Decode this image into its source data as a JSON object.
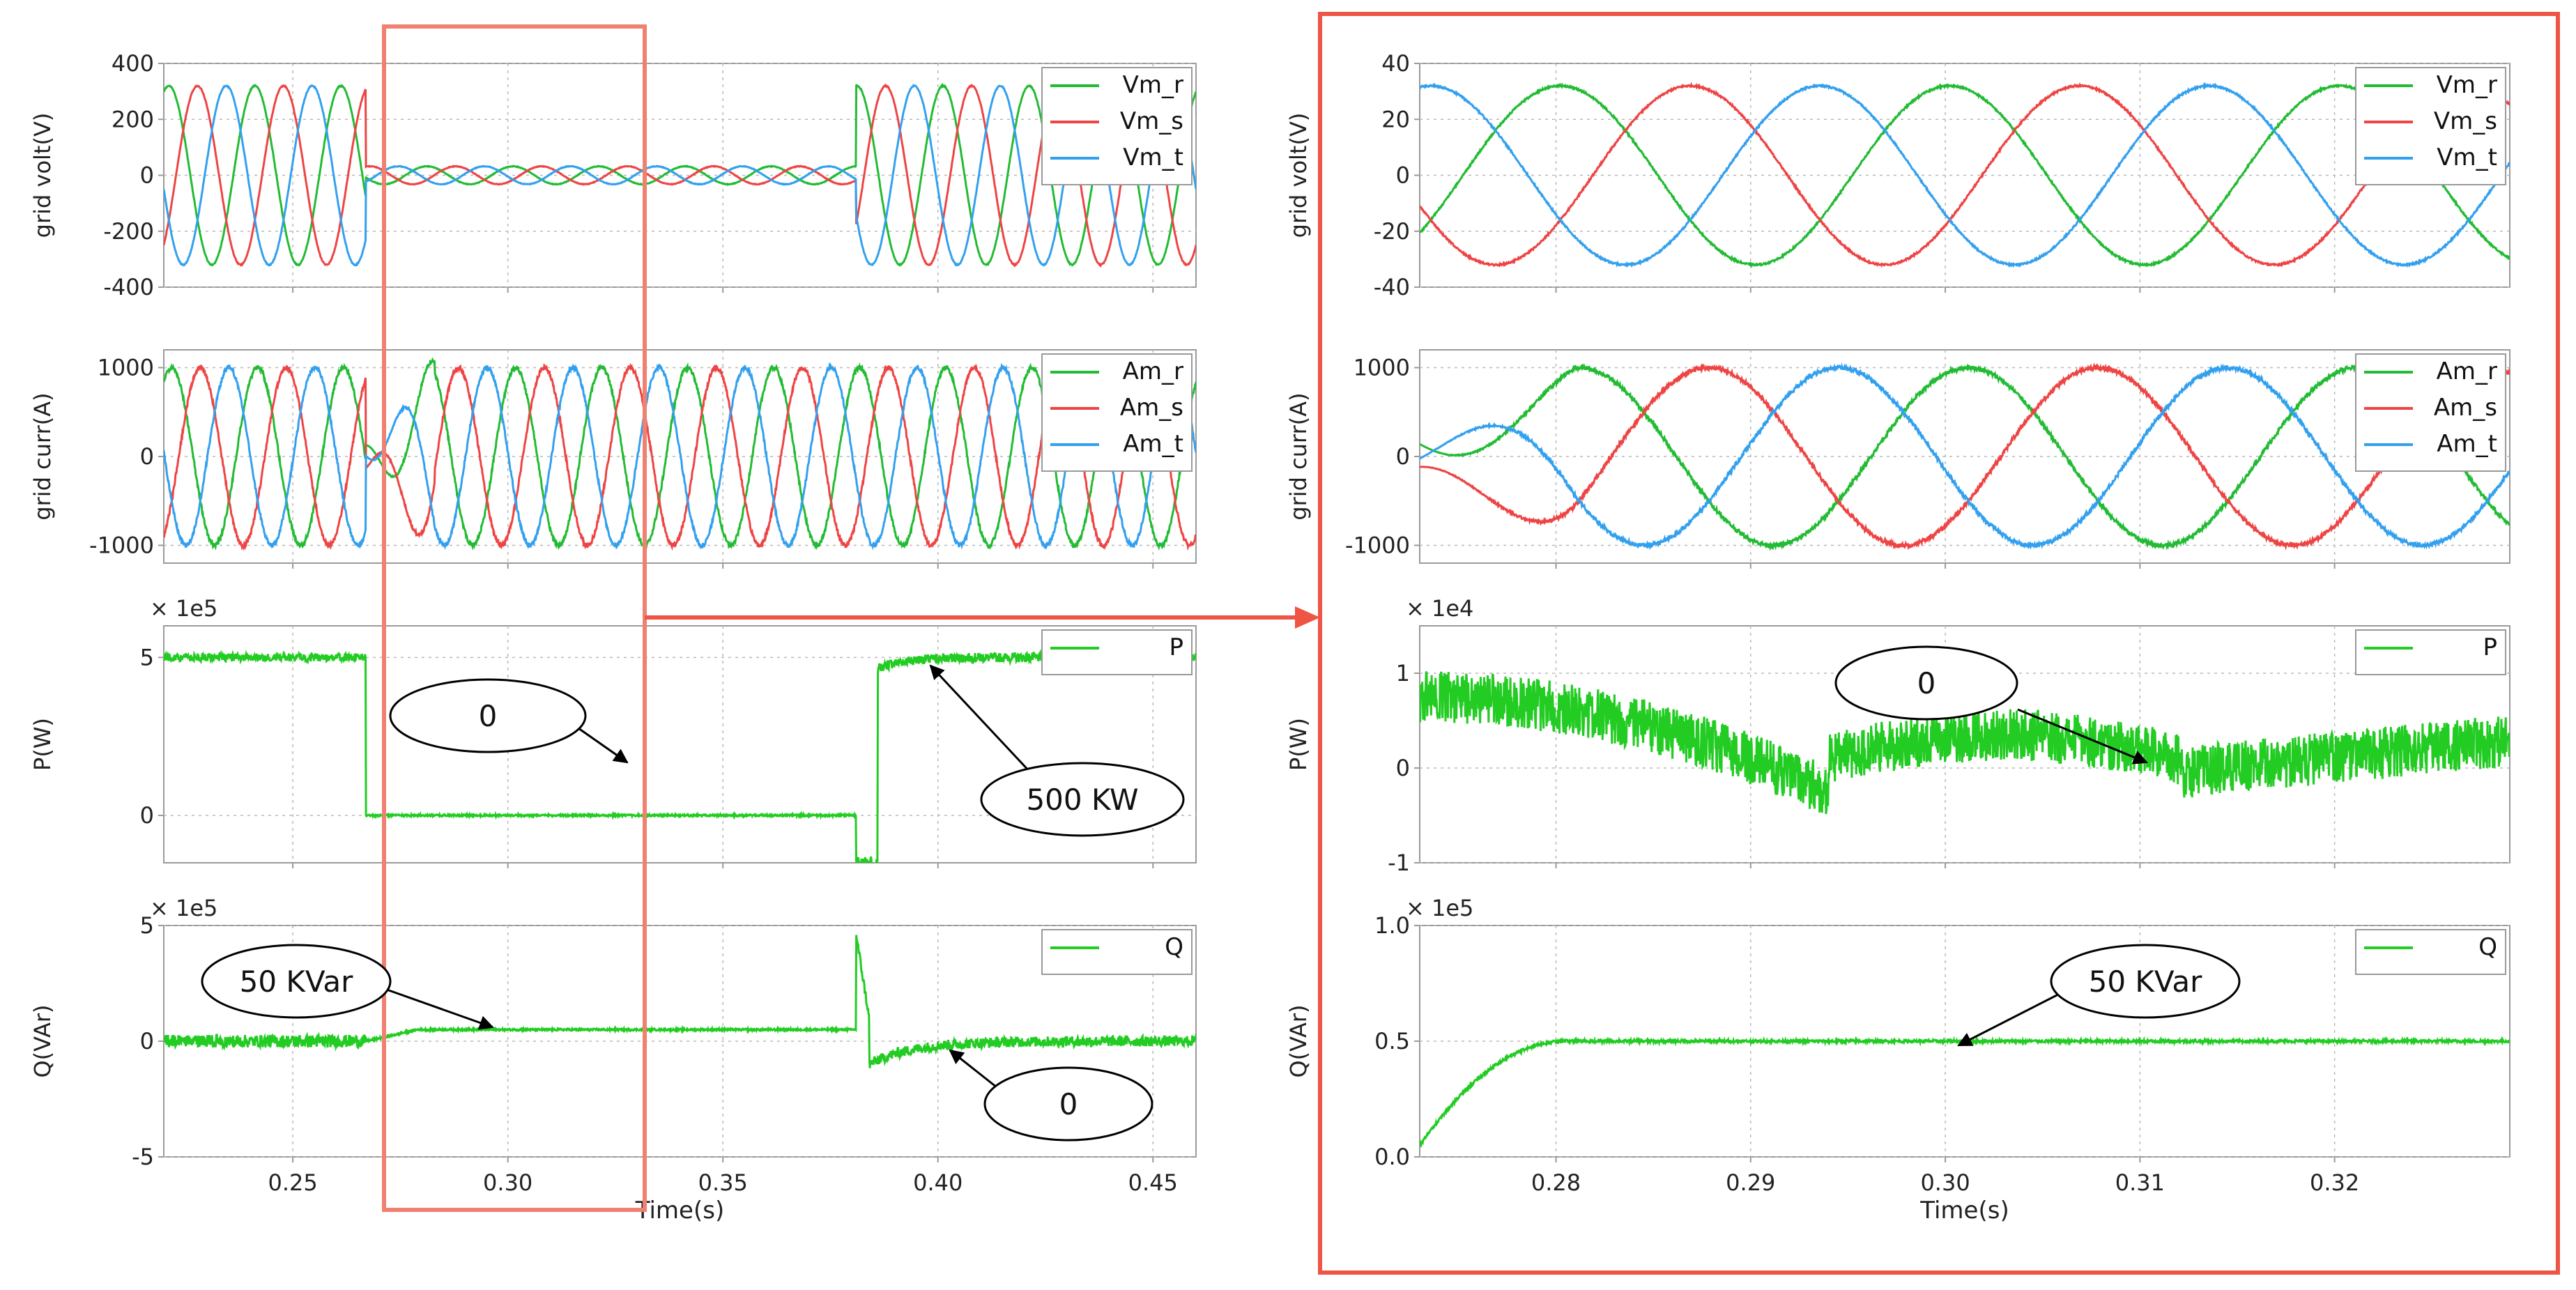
{
  "chart_data": [
    {
      "panel": "left",
      "type": "line",
      "xlabel": "Time(s)",
      "xlim": [
        0.22,
        0.46
      ],
      "xticks": [
        0.25,
        0.3,
        0.35,
        0.4,
        0.45
      ],
      "xtick_labels": [
        "0.25",
        "0.30",
        "0.35",
        "0.40",
        "0.45"
      ],
      "subplots": [
        {
          "ylabel": "grid volt(V)",
          "ylim": [
            -400,
            400
          ],
          "yticks": [
            -400,
            -200,
            0,
            200,
            400
          ],
          "ytick_labels": [
            "-400",
            "-200",
            "0",
            "200",
            "400"
          ],
          "multiplier": "",
          "series": [
            {
              "name": "Vm_r",
              "color": "#22bb33"
            },
            {
              "name": "Vm_s",
              "color": "#ee4444"
            },
            {
              "name": "Vm_t",
              "color": "#33a0ee"
            }
          ],
          "amplitude_normal": 320,
          "amplitude_sag": 32,
          "sag_interval": [
            0.267,
            0.381
          ]
        },
        {
          "ylabel": "grid curr(A)",
          "ylim": [
            -1200,
            1200
          ],
          "yticks": [
            -1000,
            0,
            1000
          ],
          "ytick_labels": [
            "-1000",
            "0",
            "1000"
          ],
          "multiplier": "",
          "series": [
            {
              "name": "Am_r",
              "color": "#22bb33"
            },
            {
              "name": "Am_s",
              "color": "#ee4444"
            },
            {
              "name": "Am_t",
              "color": "#33a0ee"
            }
          ],
          "amplitude": 1000
        },
        {
          "ylabel": "P(W)",
          "ylim": [
            -1.5,
            6
          ],
          "yticks": [
            0,
            5
          ],
          "ytick_labels": [
            "0",
            "5"
          ],
          "multiplier": "× 1e5",
          "series": [
            {
              "name": "P",
              "color": "#22cc22"
            }
          ],
          "level_before": 5.0,
          "level_during": 0.0,
          "level_after": 5.0
        },
        {
          "ylabel": "Q(VAr)",
          "ylim": [
            -5,
            5
          ],
          "yticks": [
            -5,
            0,
            5
          ],
          "ytick_labels": [
            "-5",
            "0",
            "5"
          ],
          "multiplier": "× 1e5",
          "series": [
            {
              "name": "Q",
              "color": "#22cc22"
            }
          ],
          "level_before": 0.0,
          "level_during": 0.5,
          "level_after": 0.0
        }
      ],
      "annotations": [
        "0",
        "500 KW",
        "50  KVar",
        "0"
      ]
    },
    {
      "panel": "right",
      "type": "line",
      "xlabel": "Time(s)",
      "xlim": [
        0.273,
        0.329
      ],
      "xticks": [
        0.28,
        0.29,
        0.3,
        0.31,
        0.32
      ],
      "xtick_labels": [
        "0.28",
        "0.29",
        "0.30",
        "0.31",
        "0.32"
      ],
      "subplots": [
        {
          "ylabel": "grid volt(V)",
          "ylim": [
            -40,
            40
          ],
          "yticks": [
            -40,
            -20,
            0,
            20,
            40
          ],
          "ytick_labels": [
            "-40",
            "-20",
            "0",
            "20",
            "40"
          ],
          "multiplier": "",
          "series": [
            {
              "name": "Vm_r",
              "color": "#22bb33"
            },
            {
              "name": "Vm_s",
              "color": "#ee4444"
            },
            {
              "name": "Vm_t",
              "color": "#33a0ee"
            }
          ],
          "amplitude": 32
        },
        {
          "ylabel": "grid curr(A)",
          "ylim": [
            -1200,
            1200
          ],
          "yticks": [
            -1000,
            0,
            1000
          ],
          "ytick_labels": [
            "-1000",
            "0",
            "1000"
          ],
          "multiplier": "",
          "series": [
            {
              "name": "Am_r",
              "color": "#22bb33"
            },
            {
              "name": "Am_s",
              "color": "#ee4444"
            },
            {
              "name": "Am_t",
              "color": "#33a0ee"
            }
          ],
          "amplitude": 1000
        },
        {
          "ylabel": "P(W)",
          "ylim": [
            -1,
            1.5
          ],
          "yticks": [
            -1,
            0,
            1
          ],
          "ytick_labels": [
            "-1",
            "0",
            "1"
          ],
          "multiplier": "× 1e4",
          "series": [
            {
              "name": "P",
              "color": "#22cc22"
            }
          ]
        },
        {
          "ylabel": "Q(VAr)",
          "ylim": [
            0,
            1.0
          ],
          "yticks": [
            0,
            0.5,
            1.0
          ],
          "ytick_labels": [
            "0.0",
            "0.5",
            "1.0"
          ],
          "multiplier": "× 1e5",
          "series": [
            {
              "name": "Q",
              "color": "#22cc22"
            }
          ],
          "level_start": 0.05,
          "level_steady": 0.5
        }
      ],
      "annotations": [
        "0",
        "50  KVar"
      ]
    }
  ],
  "colors": {
    "highlight": "#f08070",
    "frame": "#ee5544",
    "grid": "#b8b8b8",
    "axes": "#9a9a9a"
  }
}
